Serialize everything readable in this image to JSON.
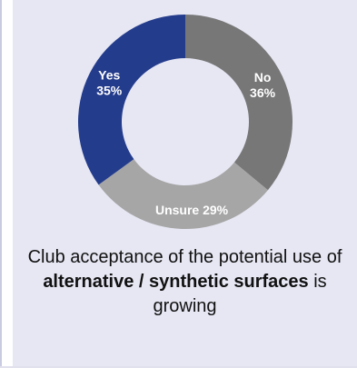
{
  "chart_data": {
    "type": "pie",
    "donut": true,
    "slices": [
      {
        "label": "No",
        "value": 36,
        "value_text": "36%",
        "color": "#777777"
      },
      {
        "label": "Unsure",
        "value": 29,
        "value_text": "29%",
        "color": "#a6a6a6"
      },
      {
        "label": "Yes",
        "value": 35,
        "value_text": "35%",
        "color": "#243c8c"
      }
    ]
  },
  "caption": {
    "part1": "Club acceptance of the potential use of ",
    "bold": "alternative / synthetic surfaces",
    "part2": " is growing"
  },
  "colors": {
    "panel_bg": "#e6e7f3",
    "text": "#111111"
  }
}
